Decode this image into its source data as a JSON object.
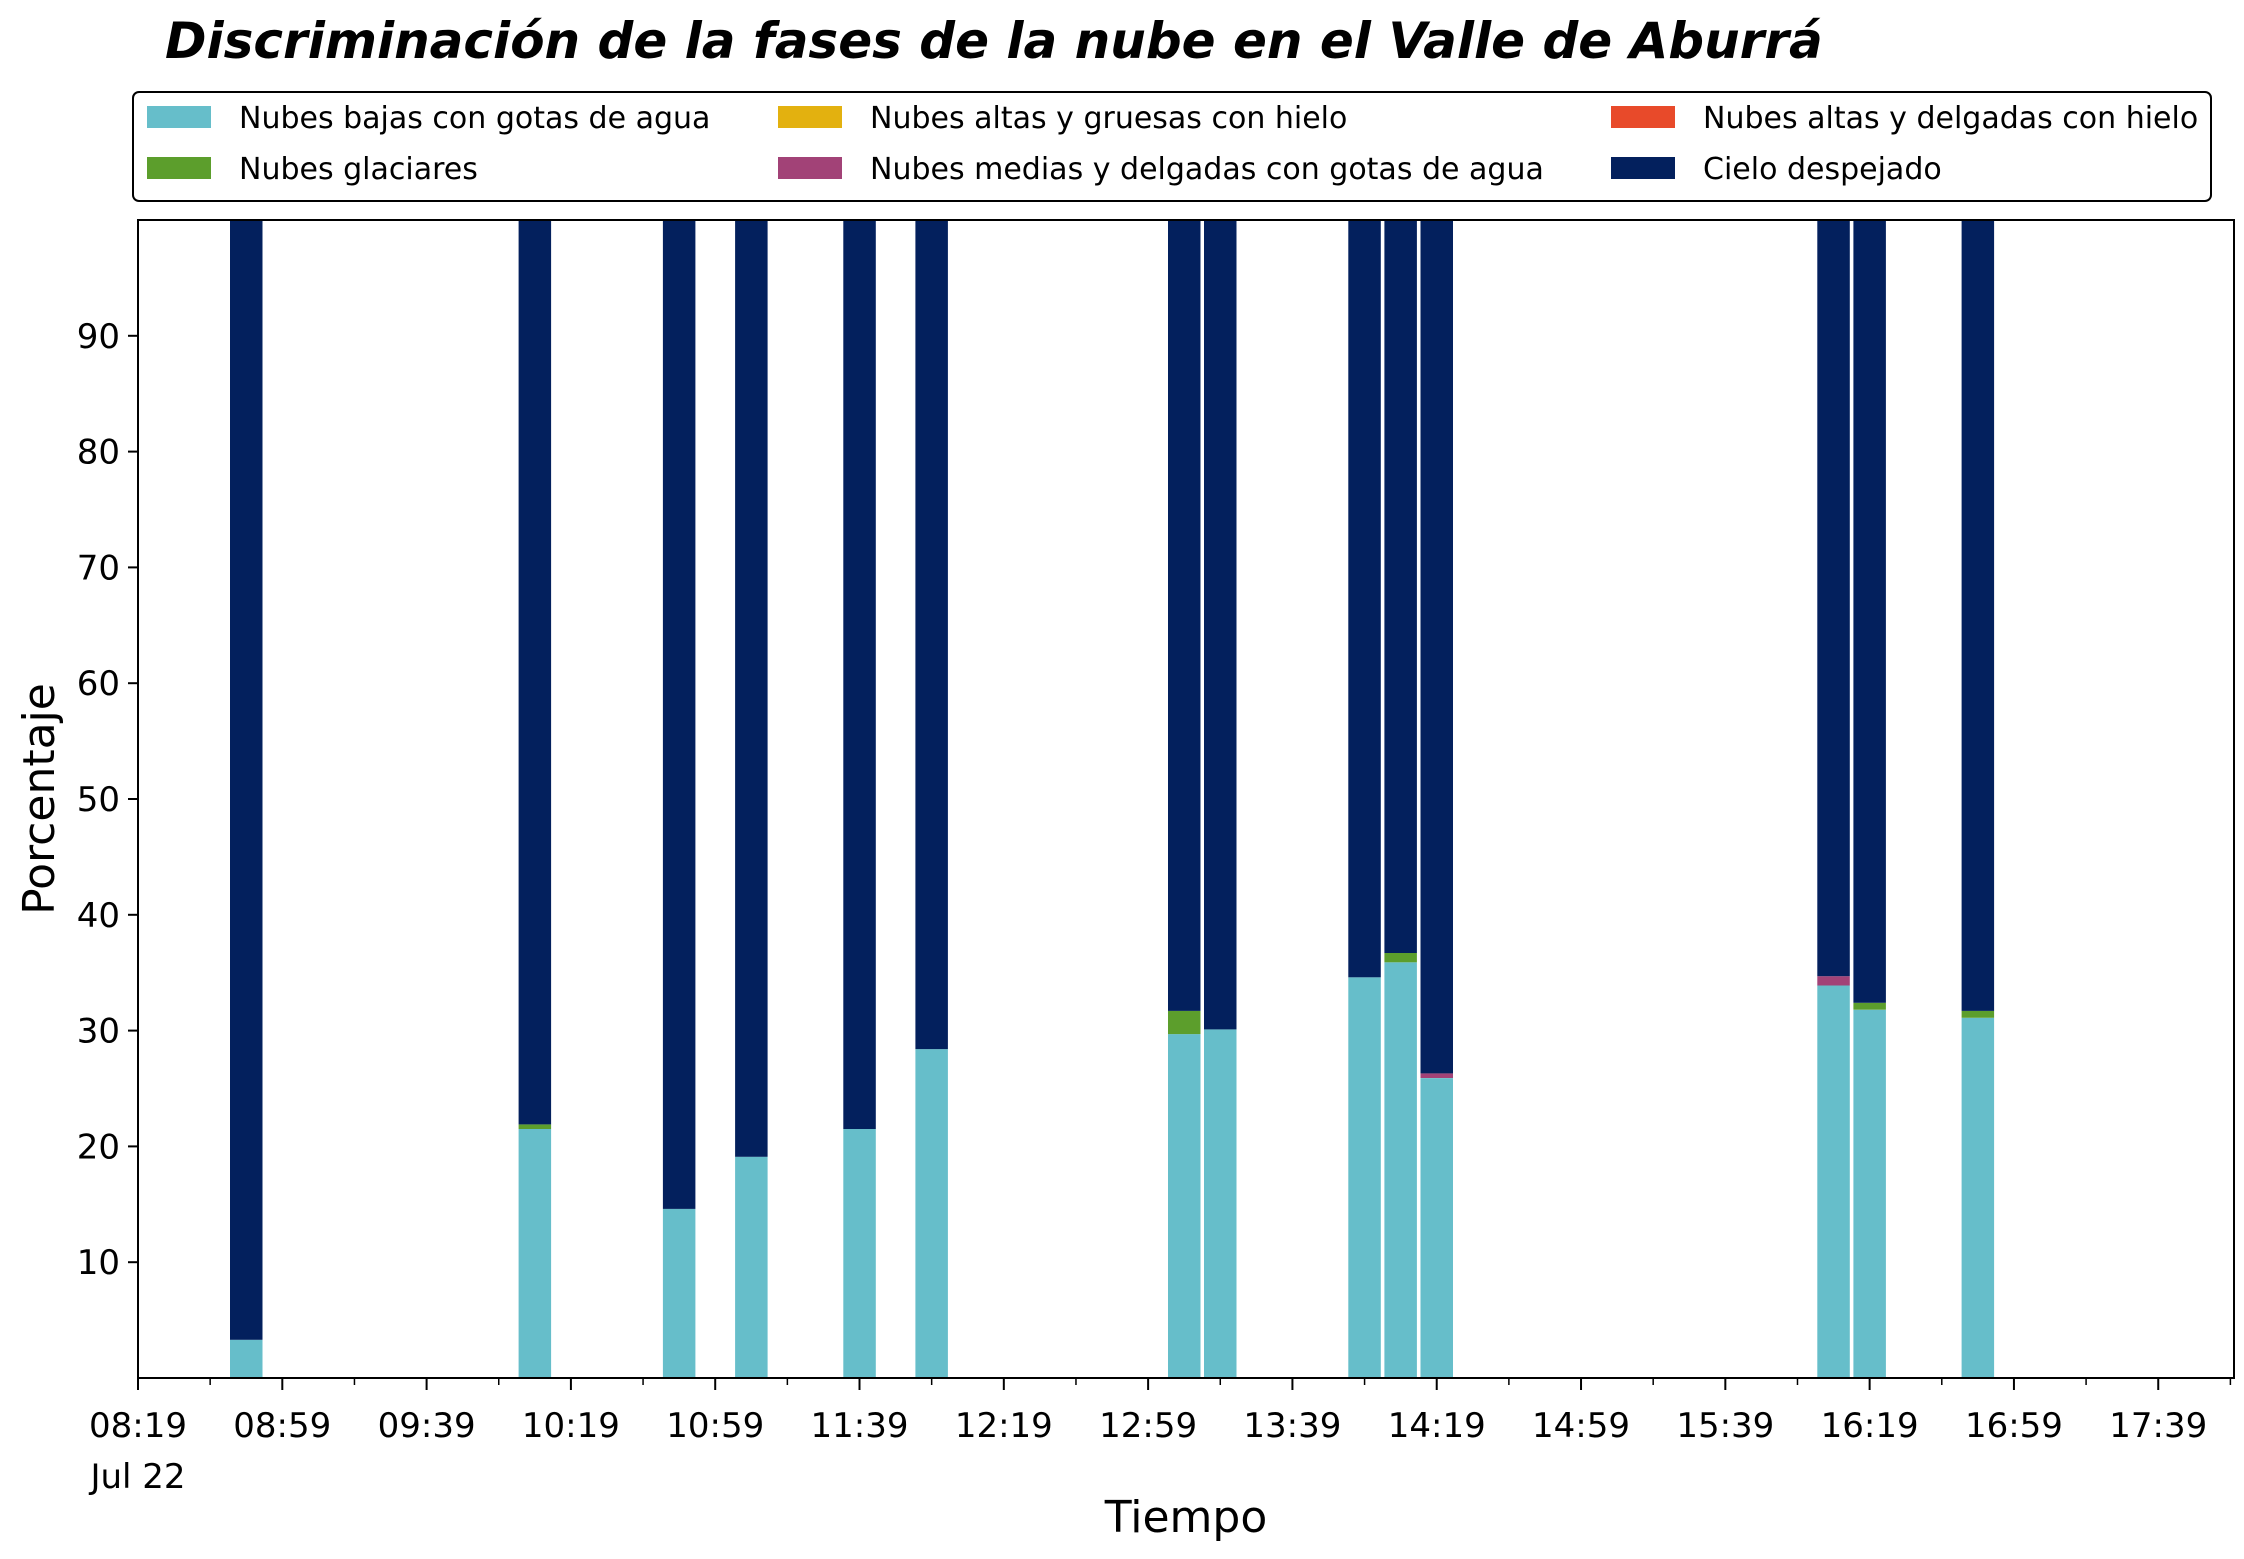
{
  "chart_data": {
    "type": "bar",
    "stacked": true,
    "title": "Discriminación de la fases de la nube en el Valle de Aburrá",
    "xlabel": "Tiempo",
    "ylabel": "Porcentaje",
    "ylim": [
      0,
      100
    ],
    "yticks": [
      10,
      20,
      30,
      40,
      50,
      60,
      70,
      80,
      90
    ],
    "xlim": [
      "08:19",
      "18:00"
    ],
    "xticks": [
      "08:19",
      "08:59",
      "09:39",
      "10:19",
      "10:59",
      "11:39",
      "12:19",
      "12:59",
      "13:39",
      "14:19",
      "14:59",
      "15:39",
      "16:19",
      "16:59",
      "17:39"
    ],
    "xtick_sublabel": "Jul 22",
    "grid": false,
    "legend_position": "top",
    "bar_width_minutes": 9,
    "times": [
      "08:49",
      "10:09",
      "10:49",
      "11:09",
      "11:39",
      "11:59",
      "13:09",
      "13:19",
      "13:59",
      "14:09",
      "14:19",
      "16:09",
      "16:19",
      "16:49"
    ],
    "series": [
      {
        "name": "Nubes bajas con gotas de agua",
        "color": "#66BECA",
        "values": [
          3.3,
          21.5,
          14.6,
          19.1,
          21.5,
          28.4,
          29.7,
          30.1,
          34.6,
          35.9,
          25.9,
          33.9,
          31.8,
          31.1
        ]
      },
      {
        "name": "Nubes glaciares",
        "color": "#5C9E2C",
        "values": [
          0,
          0.4,
          0,
          0,
          0,
          0,
          2.0,
          0,
          0,
          0.8,
          0,
          0,
          0.6,
          0.6
        ]
      },
      {
        "name": "Nubes altas y gruesas con hielo",
        "color": "#E3B10F",
        "values": [
          0,
          0,
          0,
          0,
          0,
          0,
          0,
          0,
          0,
          0,
          0,
          0,
          0,
          0
        ]
      },
      {
        "name": "Nubes medias y delgadas con gotas de agua",
        "color": "#A24277",
        "values": [
          0,
          0,
          0,
          0,
          0,
          0,
          0,
          0,
          0,
          0,
          0.4,
          0.8,
          0,
          0
        ]
      },
      {
        "name": "Nubes altas y delgadas con hielo",
        "color": "#E84A2A",
        "values": [
          0,
          0,
          0,
          0,
          0,
          0,
          0,
          0,
          0,
          0,
          0,
          0,
          0,
          0
        ]
      },
      {
        "name": "Cielo despejado",
        "color": "#03205D",
        "values": [
          96.7,
          78.1,
          85.4,
          80.9,
          78.5,
          71.6,
          68.3,
          69.9,
          65.4,
          63.3,
          73.7,
          65.3,
          67.6,
          68.3
        ]
      }
    ]
  }
}
